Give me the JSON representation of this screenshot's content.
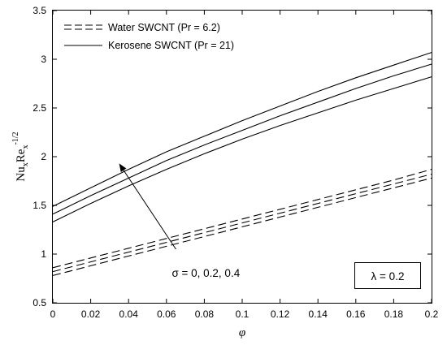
{
  "chart_data": {
    "type": "line",
    "xlabel": "φ",
    "ylabel_main": "Nu",
    "ylabel_sub1": "x",
    "ylabel_mid": "Re",
    "ylabel_sub2": "x",
    "ylabel_sup": "-1/2",
    "xlim": [
      0,
      0.2
    ],
    "ylim": [
      0.5,
      3.5
    ],
    "xticks": [
      0,
      0.02,
      0.04,
      0.06,
      0.08,
      0.1,
      0.12,
      0.14,
      0.16,
      0.18,
      0.2
    ],
    "xtick_labels": [
      "0",
      "0.02",
      "0.04",
      "0.06",
      "0.08",
      "0.1",
      "0.12",
      "0.14",
      "0.16",
      "0.18",
      "0.2"
    ],
    "yticks": [
      0.5,
      1,
      1.5,
      2,
      2.5,
      3,
      3.5
    ],
    "ytick_labels": [
      "0.5",
      "1",
      "1.5",
      "2",
      "2.5",
      "3",
      "3.5"
    ],
    "grid": false,
    "legend_position": "top-left",
    "x": [
      0,
      0.02,
      0.04,
      0.06,
      0.08,
      0.1,
      0.12,
      0.14,
      0.16,
      0.18,
      0.2
    ],
    "series": [
      {
        "group": "Water SWCNT (Pr = 6.2)",
        "style": "dashed",
        "sigma": "0",
        "values": [
          0.78,
          0.88,
          0.98,
          1.08,
          1.18,
          1.28,
          1.38,
          1.48,
          1.58,
          1.68,
          1.78
        ]
      },
      {
        "group": "Water SWCNT (Pr = 6.2)",
        "style": "dashed",
        "sigma": "0.2",
        "values": [
          0.82,
          0.92,
          1.02,
          1.12,
          1.22,
          1.32,
          1.42,
          1.52,
          1.62,
          1.72,
          1.82
        ]
      },
      {
        "group": "Water SWCNT (Pr = 6.2)",
        "style": "dashed",
        "sigma": "0.4",
        "values": [
          0.86,
          0.96,
          1.06,
          1.16,
          1.26,
          1.36,
          1.46,
          1.56,
          1.66,
          1.76,
          1.87
        ]
      },
      {
        "group": "Kerosene SWCNT (Pr = 21)",
        "style": "solid",
        "sigma": "0",
        "values": [
          1.33,
          1.52,
          1.7,
          1.87,
          2.03,
          2.18,
          2.32,
          2.45,
          2.58,
          2.7,
          2.82
        ]
      },
      {
        "group": "Kerosene SWCNT (Pr = 21)",
        "style": "solid",
        "sigma": "0.2",
        "values": [
          1.41,
          1.6,
          1.78,
          1.96,
          2.12,
          2.27,
          2.42,
          2.56,
          2.7,
          2.83,
          2.95
        ]
      },
      {
        "group": "Kerosene SWCNT (Pr = 21)",
        "style": "solid",
        "sigma": "0.4",
        "values": [
          1.49,
          1.68,
          1.87,
          2.05,
          2.21,
          2.37,
          2.52,
          2.67,
          2.81,
          2.94,
          3.07
        ]
      }
    ],
    "legend": [
      {
        "label": "Water SWCNT (Pr = 6.2)",
        "style": "dashed"
      },
      {
        "label": "Kerosene SWCNT (Pr = 21)",
        "style": "solid"
      }
    ],
    "annotations": {
      "arrow_label": "σ = 0, 0.2, 0.4",
      "arrow_from": [
        0.065,
        1.05
      ],
      "arrow_to": [
        0.035,
        1.93
      ],
      "parameter_box": "λ = 0.2"
    },
    "colors": {
      "line": "#000000",
      "background": "#ffffff"
    }
  }
}
